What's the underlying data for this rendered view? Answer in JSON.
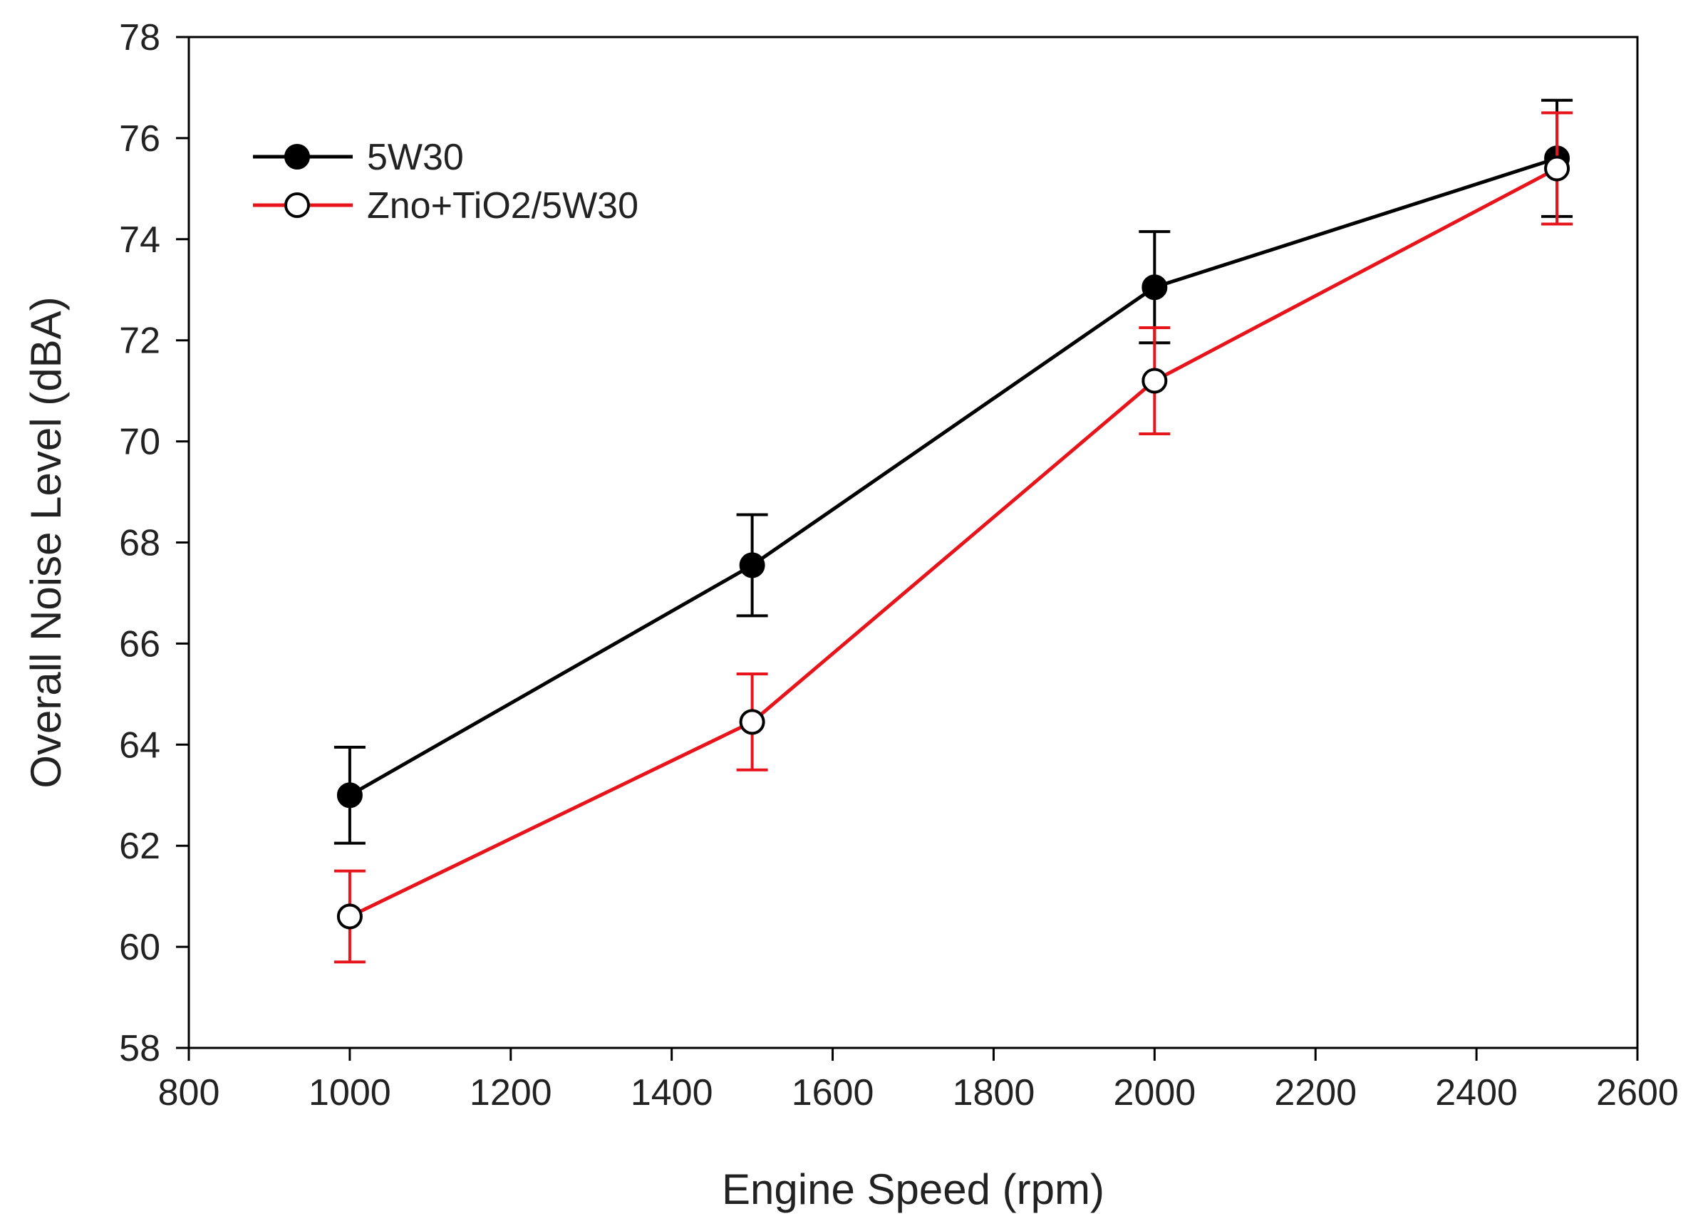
{
  "chart_data": {
    "type": "line",
    "title": "",
    "xlabel": "Engine Speed (rpm)",
    "ylabel": "Overall Noise Level (dBA)",
    "xlim": [
      800,
      2600
    ],
    "ylim": [
      58,
      78
    ],
    "xticks": [
      800,
      1000,
      1200,
      1400,
      1600,
      1800,
      2000,
      2200,
      2400,
      2600
    ],
    "yticks": [
      58,
      60,
      62,
      64,
      66,
      68,
      70,
      72,
      74,
      76,
      78
    ],
    "grid": false,
    "legend_position": "top-left",
    "series": [
      {
        "name": "5W30",
        "color": "#000000",
        "marker": "filled-circle",
        "x": [
          1000,
          1500,
          2000,
          2500
        ],
        "y": [
          63.0,
          67.55,
          73.05,
          75.6
        ],
        "error": [
          0.95,
          1.0,
          1.1,
          1.15
        ]
      },
      {
        "name": "Zno+TiO2/5W30",
        "color": "#e8141b",
        "marker": "open-circle",
        "x": [
          1000,
          1500,
          2000,
          2500
        ],
        "y": [
          60.6,
          64.45,
          71.2,
          75.4
        ],
        "error": [
          0.9,
          0.95,
          1.05,
          1.1
        ]
      }
    ]
  }
}
